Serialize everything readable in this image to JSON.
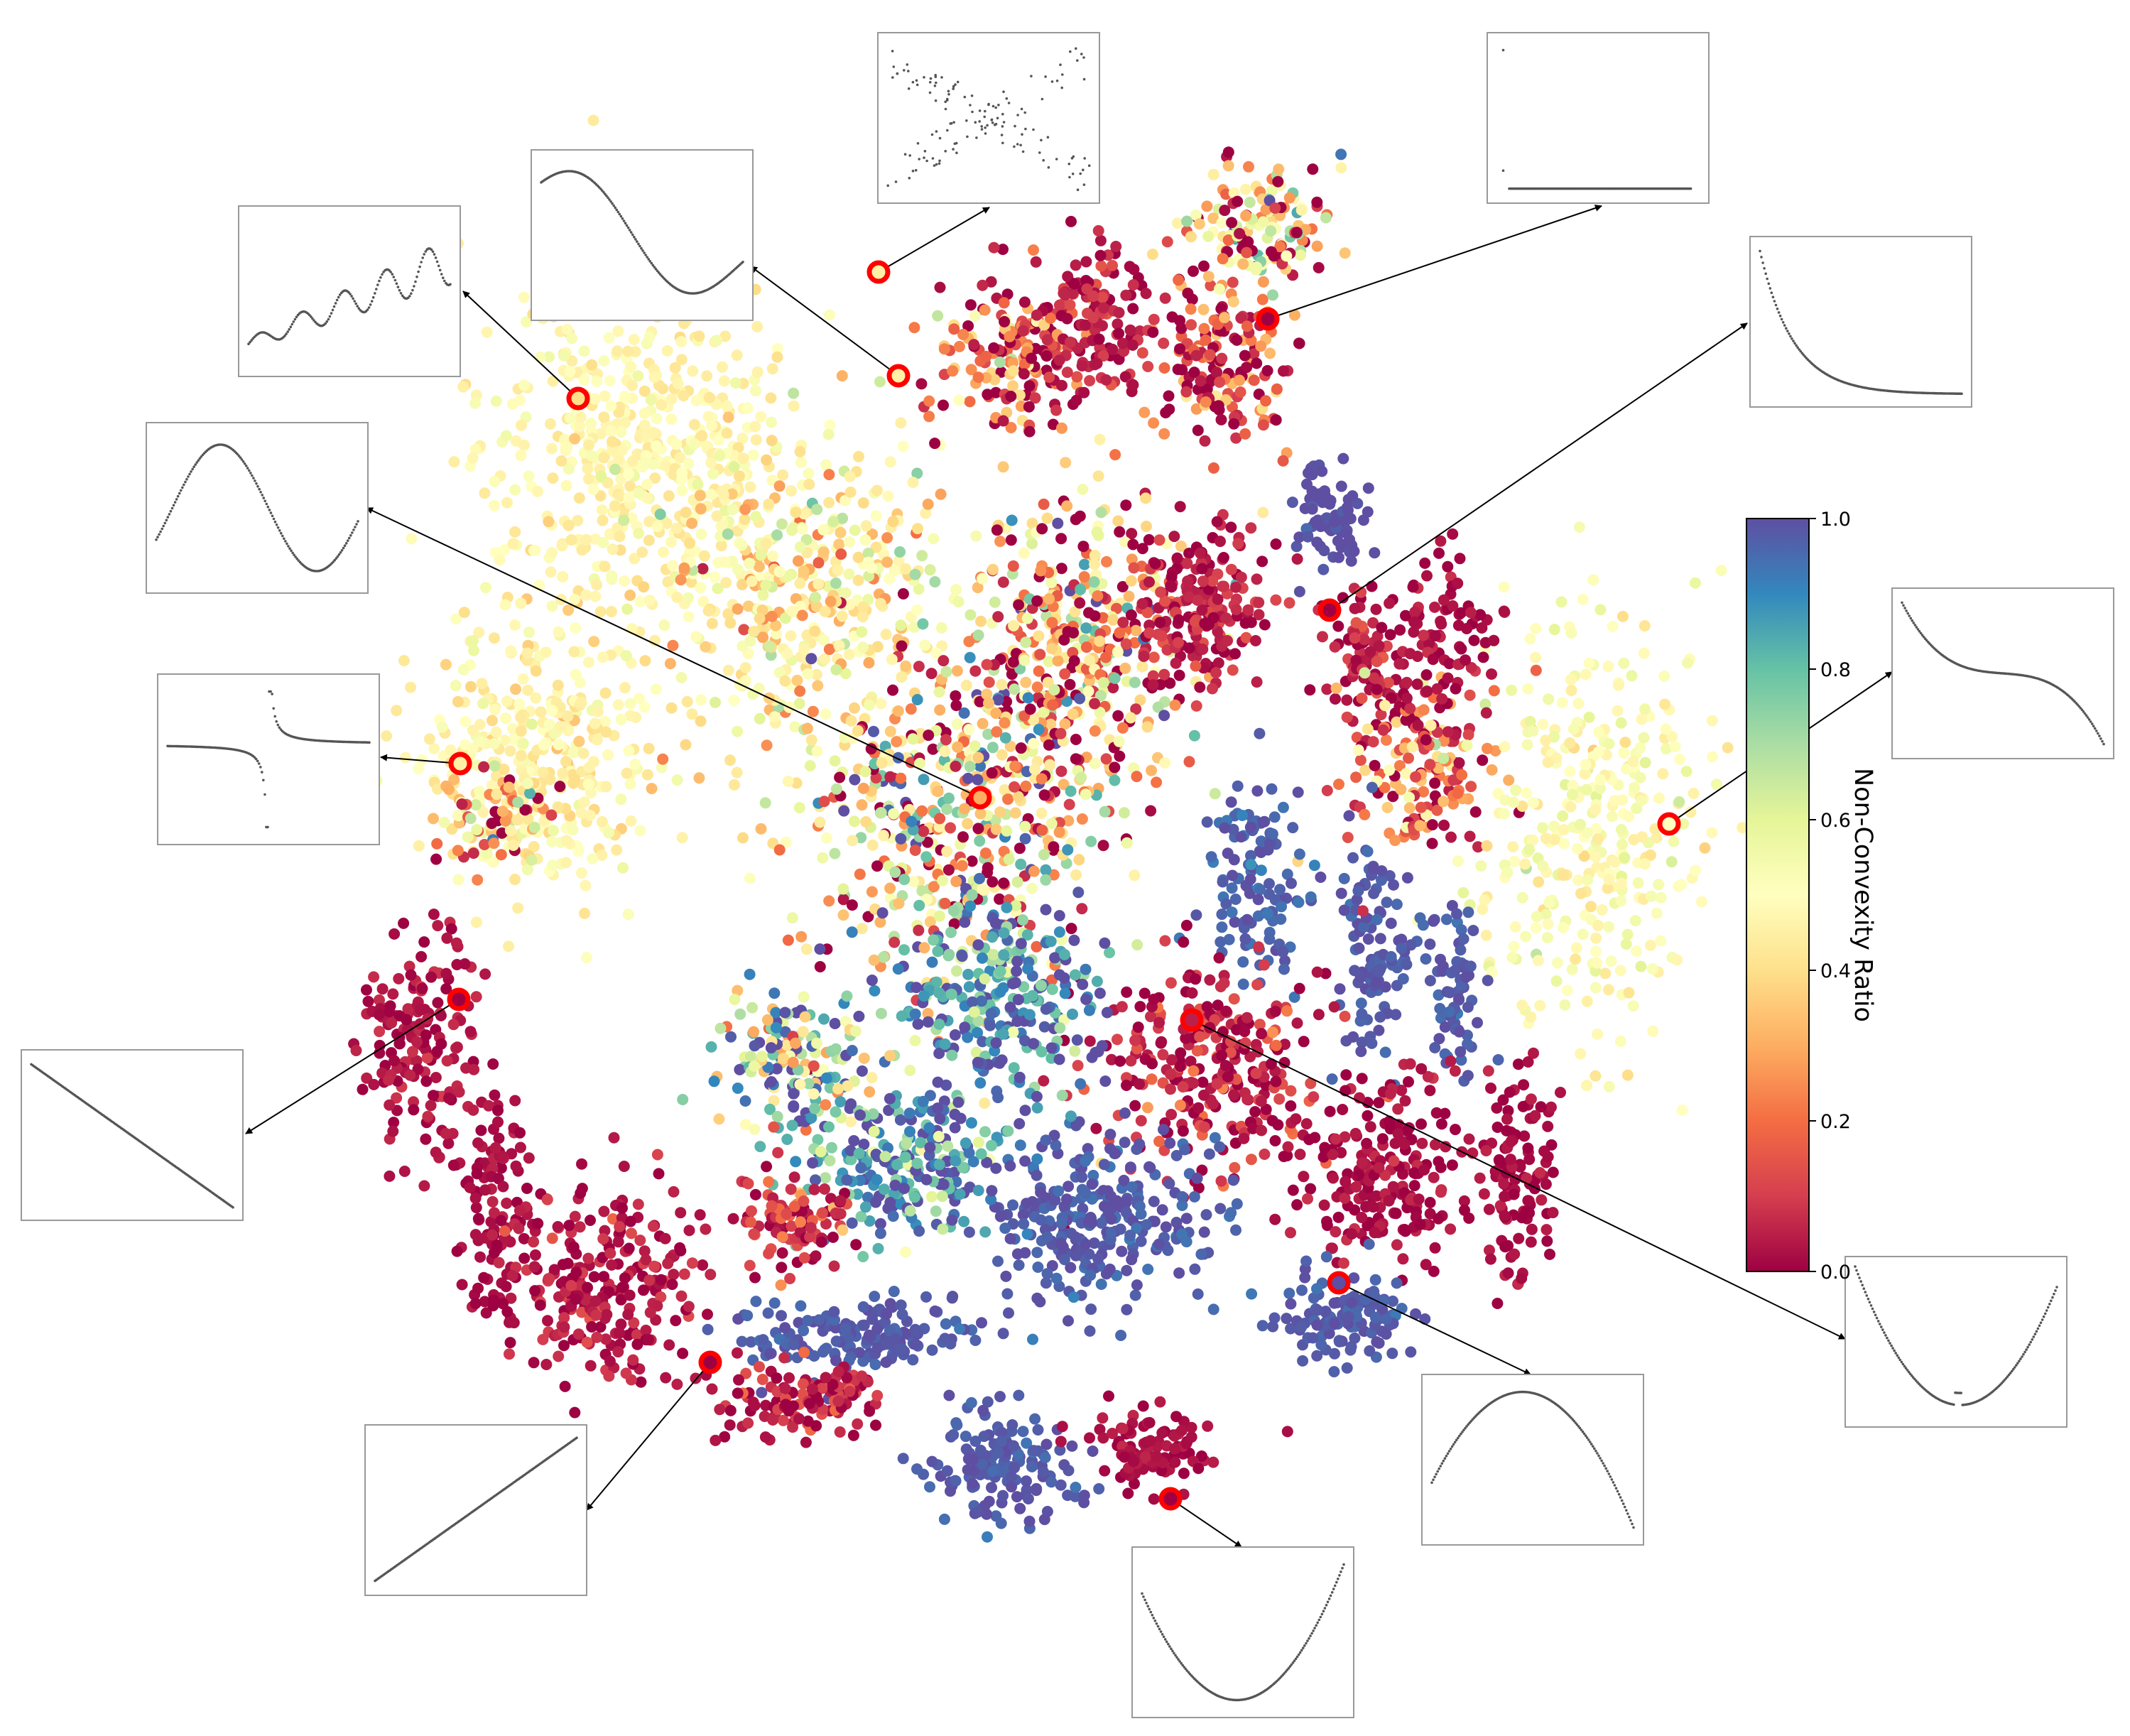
{
  "chart_data": {
    "type": "scatter",
    "title": "",
    "xlabel": "",
    "ylabel": "",
    "description_of_axes": "none shown (t-SNE style embedding)",
    "grid": false,
    "colorbar": {
      "label": "Non-Convexity Ratio",
      "colormap": "Spectral",
      "range": [
        0.0,
        1.0
      ],
      "ticks": [
        "0.0",
        "0.2",
        "0.4",
        "0.6",
        "0.8",
        "1.0"
      ],
      "placement": "right"
    },
    "colormap_stops": [
      "#9e0142",
      "#d53e4f",
      "#f46d43",
      "#fdae61",
      "#fee08b",
      "#ffffbf",
      "#e6f598",
      "#abdda4",
      "#66c2a5",
      "#3288bd",
      "#5e4fa2"
    ],
    "marker_color": "#ff0000",
    "inset_curve_color": "#555555",
    "inset_border_color": "#999999",
    "insets": [
      {
        "id": "inset-sine-growing",
        "curve": "growing-oscillation",
        "marker_nc": 0.4
      },
      {
        "id": "inset-wave-dip",
        "curve": "wave-with-dip",
        "marker_nc": 0.45
      },
      {
        "id": "inset-noisy-x",
        "curve": "noisy-x-pattern",
        "marker_nc": 0.45
      },
      {
        "id": "inset-flat-line",
        "curve": "flat-baseline",
        "marker_nc": 0.0
      },
      {
        "id": "inset-decay",
        "curve": "exponential-decay",
        "marker_nc": 0.0
      },
      {
        "id": "inset-sine",
        "curve": "single-sine",
        "marker_nc": 0.3
      },
      {
        "id": "inset-step",
        "curve": "step-discontinuity",
        "marker_nc": 0.45
      },
      {
        "id": "inset-cubic",
        "curve": "decreasing-cubic",
        "marker_nc": 0.5
      },
      {
        "id": "inset-linear-down",
        "curve": "linear-decreasing",
        "marker_nc": 0.0
      },
      {
        "id": "inset-kinked-valley",
        "curve": "kinked-valley",
        "marker_nc": 0.05
      },
      {
        "id": "inset-linear-up",
        "curve": "linear-increasing",
        "marker_nc": 0.0
      },
      {
        "id": "inset-concave",
        "curve": "concave-arch",
        "marker_nc": 1.0
      },
      {
        "id": "inset-parabola",
        "curve": "convex-parabola",
        "marker_nc": 0.0
      }
    ]
  }
}
